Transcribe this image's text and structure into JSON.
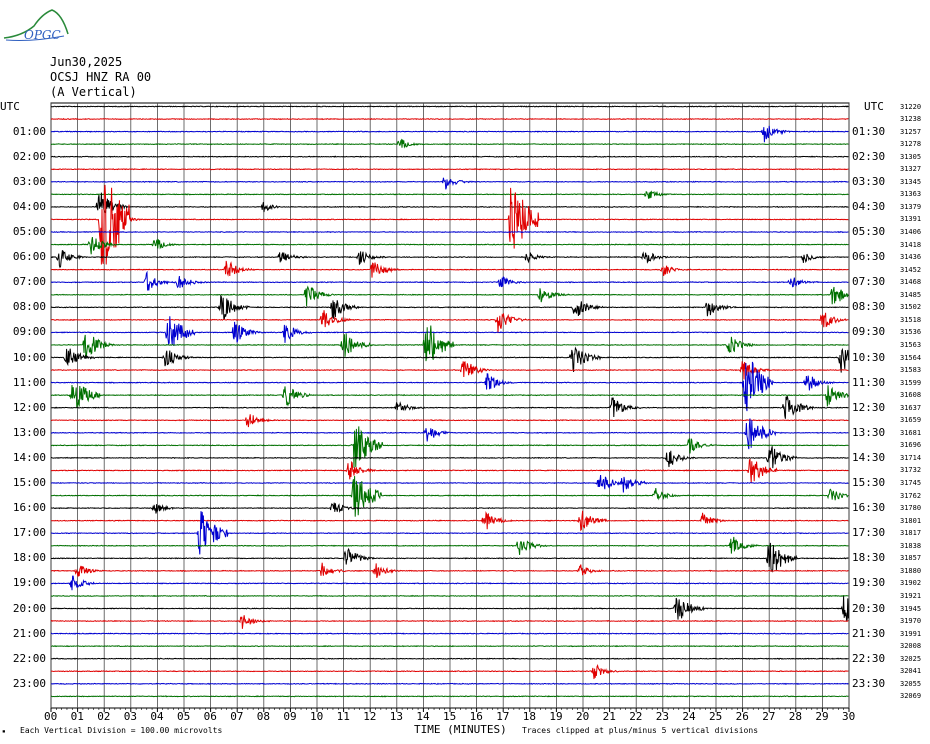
{
  "header": {
    "logo_text": "OPGC",
    "date": "Jun30,2025",
    "station": "OCSJ HNZ RA 00",
    "component": "(A Vertical)"
  },
  "axis_labels": {
    "left_unit": "UTC",
    "right_unit": "UTC",
    "xlabel": "TIME (MINUTES)"
  },
  "footer": {
    "division_note": "Each Vertical Division =  100.00 microvolts",
    "clip_note": "Traces clipped at plus/minus 5 vertical divisions"
  },
  "colors": {
    "black": "#000000",
    "red": "#e00000",
    "blue": "#0000d0",
    "green": "#007000",
    "grid": "#4a4a4a"
  },
  "chart_data": {
    "type": "line",
    "description_source": "helicorder seismogram, 24 hours, 2 traces per hour",
    "x": {
      "min": 0,
      "max": 30,
      "unit": "minutes",
      "tick_labels": [
        "00",
        "01",
        "02",
        "03",
        "04",
        "05",
        "06",
        "07",
        "08",
        "09",
        "10",
        "11",
        "12",
        "13",
        "14",
        "15",
        "16",
        "17",
        "18",
        "19",
        "20",
        "21",
        "22",
        "23",
        "24",
        "25",
        "26",
        "27",
        "28",
        "29",
        "30"
      ]
    },
    "left_tick_labels": [
      "01:00",
      "02:00",
      "03:00",
      "04:00",
      "05:00",
      "06:00",
      "07:00",
      "08:00",
      "09:00",
      "10:00",
      "11:00",
      "12:00",
      "13:00",
      "14:00",
      "15:00",
      "16:00",
      "17:00",
      "18:00",
      "19:00",
      "20:00",
      "21:00",
      "22:00",
      "23:00"
    ],
    "right_tick_labels": [
      "01:30",
      "02:30",
      "03:30",
      "04:30",
      "05:30",
      "06:30",
      "07:30",
      "08:30",
      "09:30",
      "10:30",
      "11:30",
      "12:30",
      "13:30",
      "14:30",
      "15:30",
      "16:30",
      "17:30",
      "18:30",
      "19:30",
      "20:30",
      "21:30",
      "22:30",
      "23:30"
    ],
    "right_counts": [
      "31220",
      "31238",
      "31257",
      "31278",
      "31305",
      "31327",
      "31345",
      "31363",
      "31379",
      "31391",
      "31406",
      "31418",
      "31436",
      "31452",
      "31468",
      "31485",
      "31502",
      "31518",
      "31536",
      "31563",
      "31564",
      "31583",
      "31599",
      "31608",
      "31637",
      "31659",
      "31681",
      "31696",
      "31714",
      "31732",
      "31745",
      "31762",
      "31780",
      "31801",
      "31817",
      "31838",
      "31857",
      "31880",
      "31902",
      "31921",
      "31945",
      "31970",
      "31991",
      "32008",
      "32025",
      "32041",
      "32055",
      "32069"
    ],
    "trace_color_cycle": [
      "black",
      "red",
      "blue",
      "green"
    ],
    "trace_count": 48,
    "events": [
      {
        "trace": 2,
        "minute": 26.8,
        "amp": 1.0
      },
      {
        "trace": 3,
        "minute": 13.1,
        "amp": 0.6
      },
      {
        "trace": 6,
        "minute": 14.8,
        "amp": 0.8
      },
      {
        "trace": 7,
        "minute": 22.4,
        "amp": 0.6
      },
      {
        "trace": 8,
        "minute": 1.8,
        "amp": 1.6
      },
      {
        "trace": 8,
        "minute": 8.0,
        "amp": 0.5
      },
      {
        "trace": 9,
        "minute": 1.9,
        "amp": 5.0
      },
      {
        "trace": 9,
        "minute": 17.3,
        "amp": 3.5
      },
      {
        "trace": 9,
        "minute": 2.5,
        "amp": 0.8
      },
      {
        "trace": 11,
        "minute": 1.5,
        "amp": 1.0
      },
      {
        "trace": 11,
        "minute": 3.9,
        "amp": 0.7
      },
      {
        "trace": 12,
        "minute": 0.3,
        "amp": 1.0
      },
      {
        "trace": 12,
        "minute": 8.6,
        "amp": 0.8
      },
      {
        "trace": 12,
        "minute": 11.6,
        "amp": 0.8
      },
      {
        "trace": 12,
        "minute": 17.9,
        "amp": 0.6
      },
      {
        "trace": 12,
        "minute": 22.3,
        "amp": 0.8
      },
      {
        "trace": 12,
        "minute": 28.3,
        "amp": 0.6
      },
      {
        "trace": 13,
        "minute": 6.6,
        "amp": 1.0
      },
      {
        "trace": 13,
        "minute": 12.1,
        "amp": 1.0
      },
      {
        "trace": 13,
        "minute": 23.0,
        "amp": 0.7
      },
      {
        "trace": 14,
        "minute": 3.6,
        "amp": 1.0
      },
      {
        "trace": 14,
        "minute": 4.8,
        "amp": 0.8
      },
      {
        "trace": 14,
        "minute": 16.9,
        "amp": 0.7
      },
      {
        "trace": 14,
        "minute": 27.8,
        "amp": 0.7
      },
      {
        "trace": 15,
        "minute": 9.6,
        "amp": 1.2
      },
      {
        "trace": 15,
        "minute": 18.4,
        "amp": 1.0
      },
      {
        "trace": 15,
        "minute": 29.4,
        "amp": 1.2
      },
      {
        "trace": 16,
        "minute": 6.4,
        "amp": 1.5
      },
      {
        "trace": 16,
        "minute": 10.6,
        "amp": 1.2
      },
      {
        "trace": 16,
        "minute": 19.7,
        "amp": 1.2
      },
      {
        "trace": 16,
        "minute": 24.7,
        "amp": 1.0
      },
      {
        "trace": 17,
        "minute": 10.2,
        "amp": 1.2
      },
      {
        "trace": 17,
        "minute": 16.8,
        "amp": 1.2
      },
      {
        "trace": 17,
        "minute": 29.0,
        "amp": 1.0
      },
      {
        "trace": 18,
        "minute": 4.4,
        "amp": 2.0
      },
      {
        "trace": 18,
        "minute": 6.9,
        "amp": 1.2
      },
      {
        "trace": 18,
        "minute": 8.8,
        "amp": 1.0
      },
      {
        "trace": 19,
        "minute": 1.3,
        "amp": 1.5
      },
      {
        "trace": 19,
        "minute": 11.0,
        "amp": 1.5
      },
      {
        "trace": 19,
        "minute": 14.1,
        "amp": 2.5
      },
      {
        "trace": 19,
        "minute": 25.5,
        "amp": 1.0
      },
      {
        "trace": 20,
        "minute": 0.6,
        "amp": 1.2
      },
      {
        "trace": 20,
        "minute": 4.3,
        "amp": 1.0
      },
      {
        "trace": 20,
        "minute": 19.6,
        "amp": 1.5
      },
      {
        "trace": 20,
        "minute": 29.7,
        "amp": 1.5
      },
      {
        "trace": 21,
        "minute": 15.5,
        "amp": 1.2
      },
      {
        "trace": 21,
        "minute": 26.0,
        "amp": 1.0
      },
      {
        "trace": 22,
        "minute": 16.4,
        "amp": 1.0
      },
      {
        "trace": 22,
        "minute": 26.1,
        "amp": 3.0
      },
      {
        "trace": 22,
        "minute": 28.4,
        "amp": 1.0
      },
      {
        "trace": 23,
        "minute": 0.8,
        "amp": 2.0
      },
      {
        "trace": 23,
        "minute": 8.8,
        "amp": 1.2
      },
      {
        "trace": 23,
        "minute": 29.2,
        "amp": 1.2
      },
      {
        "trace": 24,
        "minute": 13.0,
        "amp": 0.8
      },
      {
        "trace": 24,
        "minute": 21.1,
        "amp": 1.2
      },
      {
        "trace": 24,
        "minute": 27.6,
        "amp": 1.5
      },
      {
        "trace": 25,
        "minute": 7.4,
        "amp": 0.8
      },
      {
        "trace": 26,
        "minute": 14.1,
        "amp": 1.0
      },
      {
        "trace": 26,
        "minute": 26.2,
        "amp": 2.0
      },
      {
        "trace": 27,
        "minute": 11.4,
        "amp": 2.5
      },
      {
        "trace": 27,
        "minute": 24.0,
        "amp": 0.8
      },
      {
        "trace": 28,
        "minute": 23.2,
        "amp": 1.0
      },
      {
        "trace": 28,
        "minute": 27.0,
        "amp": 1.5
      },
      {
        "trace": 29,
        "minute": 11.2,
        "amp": 1.0
      },
      {
        "trace": 29,
        "minute": 26.3,
        "amp": 1.5
      },
      {
        "trace": 30,
        "minute": 20.6,
        "amp": 1.2
      },
      {
        "trace": 30,
        "minute": 21.5,
        "amp": 1.0
      },
      {
        "trace": 31,
        "minute": 11.4,
        "amp": 2.5
      },
      {
        "trace": 31,
        "minute": 22.7,
        "amp": 0.8
      },
      {
        "trace": 31,
        "minute": 29.3,
        "amp": 0.8
      },
      {
        "trace": 32,
        "minute": 3.9,
        "amp": 0.6
      },
      {
        "trace": 32,
        "minute": 10.6,
        "amp": 0.7
      },
      {
        "trace": 33,
        "minute": 16.3,
        "amp": 1.0
      },
      {
        "trace": 33,
        "minute": 19.9,
        "amp": 1.2
      },
      {
        "trace": 33,
        "minute": 24.5,
        "amp": 0.8
      },
      {
        "trace": 34,
        "minute": 5.6,
        "amp": 2.5
      },
      {
        "trace": 35,
        "minute": 17.6,
        "amp": 1.0
      },
      {
        "trace": 35,
        "minute": 25.6,
        "amp": 1.0
      },
      {
        "trace": 36,
        "minute": 11.1,
        "amp": 1.2
      },
      {
        "trace": 36,
        "minute": 27.0,
        "amp": 2.0
      },
      {
        "trace": 37,
        "minute": 1.0,
        "amp": 0.8
      },
      {
        "trace": 37,
        "minute": 10.2,
        "amp": 0.8
      },
      {
        "trace": 37,
        "minute": 12.2,
        "amp": 0.8
      },
      {
        "trace": 37,
        "minute": 19.9,
        "amp": 0.6
      },
      {
        "trace": 38,
        "minute": 0.8,
        "amp": 0.8
      },
      {
        "trace": 40,
        "minute": 23.5,
        "amp": 1.5
      },
      {
        "trace": 40,
        "minute": 29.8,
        "amp": 1.5
      },
      {
        "trace": 41,
        "minute": 7.2,
        "amp": 0.8
      },
      {
        "trace": 45,
        "minute": 20.4,
        "amp": 0.8
      }
    ]
  }
}
